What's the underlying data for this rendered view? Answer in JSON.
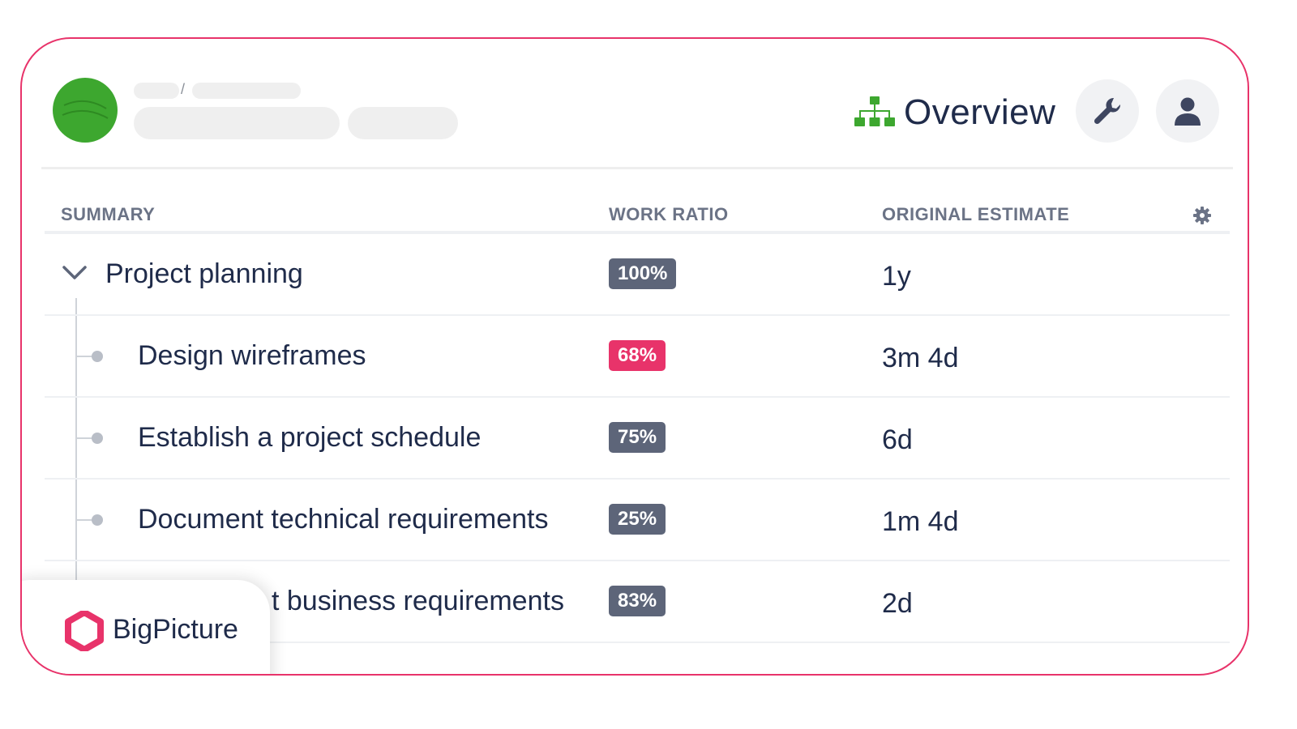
{
  "header": {
    "title": "Overview",
    "icons": {
      "overview": "hierarchy-icon",
      "settings": "wrench-icon",
      "user": "user-icon",
      "columns": "gear-icon"
    }
  },
  "table": {
    "columns": [
      "SUMMARY",
      "WORK RATIO",
      "ORIGINAL ESTIMATE"
    ],
    "rows": [
      {
        "summary": "Project planning",
        "ratio": "100%",
        "estimate": "1y"
      },
      {
        "summary": "Design wireframes",
        "ratio": "68%",
        "estimate": "3m 4d"
      },
      {
        "summary": "Establish a project schedule",
        "ratio": "75%",
        "estimate": "6d"
      },
      {
        "summary": "Document technical requirements",
        "ratio": "25%",
        "estimate": "1m 4d"
      },
      {
        "summary": "t business requirements",
        "ratio": "83%",
        "estimate": "2d"
      }
    ]
  },
  "brand": {
    "name": "BigPicture"
  },
  "colors": {
    "accent": "#e8336a",
    "project_avatar": "#3da72f",
    "badge": "#5d6579",
    "text": "#1f2b4a"
  }
}
